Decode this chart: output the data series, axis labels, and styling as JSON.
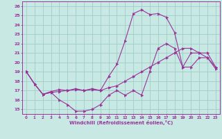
{
  "xlabel": "Windchill (Refroidissement éolien,°C)",
  "background_color": "#c8e8e4",
  "grid_color": "#a0ccc8",
  "line_color": "#993399",
  "xlim": [
    -0.5,
    23.5
  ],
  "ylim": [
    14.5,
    26.5
  ],
  "xticks": [
    0,
    1,
    2,
    3,
    4,
    5,
    6,
    7,
    8,
    9,
    10,
    11,
    12,
    13,
    14,
    15,
    16,
    17,
    18,
    19,
    20,
    21,
    22,
    23
  ],
  "yticks": [
    15,
    16,
    17,
    18,
    19,
    20,
    21,
    22,
    23,
    24,
    25,
    26
  ],
  "line1_x": [
    0,
    1,
    2,
    3,
    4,
    5,
    6,
    7,
    8,
    9,
    10,
    11,
    12,
    13,
    14,
    15,
    16,
    17,
    18,
    19,
    20,
    21,
    22,
    23
  ],
  "line1_y": [
    19.0,
    17.7,
    16.6,
    16.8,
    16.0,
    15.5,
    14.8,
    14.8,
    15.0,
    15.5,
    16.5,
    17.0,
    16.5,
    17.0,
    16.5,
    19.0,
    21.5,
    22.0,
    21.5,
    19.5,
    21.0,
    21.0,
    21.0,
    19.5
  ],
  "line2_x": [
    0,
    1,
    2,
    3,
    4,
    5,
    6,
    7,
    8,
    9,
    10,
    11,
    12,
    13,
    14,
    15,
    16,
    17,
    18,
    19,
    20,
    21,
    22,
    23
  ],
  "line2_y": [
    19.0,
    17.7,
    16.6,
    16.9,
    17.1,
    17.0,
    17.2,
    17.0,
    17.2,
    17.0,
    18.5,
    19.8,
    22.3,
    25.2,
    25.6,
    25.1,
    25.2,
    24.8,
    23.2,
    19.5,
    19.5,
    20.5,
    20.5,
    19.5
  ],
  "line3_x": [
    0,
    1,
    2,
    3,
    4,
    5,
    6,
    7,
    8,
    9,
    10,
    11,
    12,
    13,
    14,
    15,
    16,
    17,
    18,
    19,
    20,
    21,
    22,
    23
  ],
  "line3_y": [
    19.0,
    17.7,
    16.6,
    16.8,
    16.9,
    17.0,
    17.1,
    17.0,
    17.1,
    17.0,
    17.3,
    17.5,
    18.0,
    18.5,
    19.0,
    19.5,
    20.0,
    20.5,
    21.0,
    21.5,
    21.5,
    21.0,
    20.5,
    19.3
  ]
}
